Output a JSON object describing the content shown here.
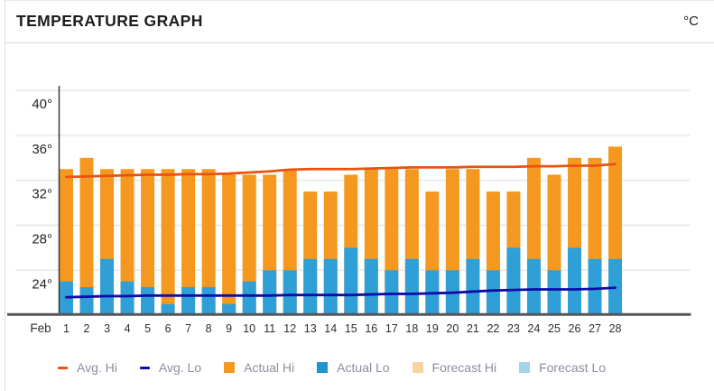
{
  "header": {
    "title": "TEMPERATURE GRAPH",
    "unit": "°C"
  },
  "legend": [
    {
      "label": "Avg. Hi",
      "shape": "line",
      "color": "#e9530e"
    },
    {
      "label": "Avg. Lo",
      "shape": "line",
      "color": "#0d0ca8"
    },
    {
      "label": "Actual Hi",
      "shape": "square",
      "color": "#f5981f"
    },
    {
      "label": "Actual Lo",
      "shape": "square",
      "color": "#2093d1"
    },
    {
      "label": "Forecast Hi",
      "shape": "square",
      "color": "#f9d3a0"
    },
    {
      "label": "Forecast Lo",
      "shape": "square",
      "color": "#a3d2ea"
    }
  ],
  "chart_data": {
    "type": "bar",
    "title": "TEMPERATURE GRAPH",
    "unit": "°C",
    "month_label": "Feb",
    "x": [
      1,
      2,
      3,
      4,
      5,
      6,
      7,
      8,
      9,
      10,
      11,
      12,
      13,
      14,
      15,
      16,
      17,
      18,
      19,
      20,
      21,
      22,
      23,
      24,
      25,
      26,
      27,
      28
    ],
    "y_axis": {
      "ticks": [
        40,
        36,
        32,
        28,
        24
      ],
      "tick_suffix": "°",
      "ylim": [
        20,
        40.5
      ],
      "grid": true
    },
    "series": [
      {
        "name": "Actual Hi",
        "type": "bar",
        "color": "#f5981f",
        "values": [
          33,
          34,
          33,
          33,
          33,
          33,
          33,
          33,
          32.5,
          32.5,
          32.5,
          33,
          31,
          31,
          32.5,
          33,
          33,
          33,
          31,
          33,
          33,
          31,
          31,
          34,
          32.5,
          34,
          34,
          35
        ]
      },
      {
        "name": "Actual Lo",
        "type": "bar",
        "color": "#2f9fd7",
        "values": [
          23,
          22.5,
          25,
          23,
          22.5,
          21,
          22.5,
          22.5,
          21,
          23,
          24,
          24,
          25,
          25,
          26,
          25,
          24,
          25,
          24,
          24,
          25,
          24,
          26,
          25,
          24,
          26,
          25,
          25
        ]
      },
      {
        "name": "Avg. Hi",
        "type": "line",
        "color": "#e9530e",
        "values": [
          32.3,
          32.35,
          32.4,
          32.45,
          32.5,
          32.5,
          32.55,
          32.55,
          32.6,
          32.7,
          32.8,
          32.95,
          33.0,
          33.0,
          33.0,
          33.05,
          33.1,
          33.15,
          33.15,
          33.15,
          33.2,
          33.2,
          33.2,
          33.25,
          33.25,
          33.3,
          33.3,
          33.45
        ]
      },
      {
        "name": "Avg. Lo",
        "type": "line",
        "color": "#0d0ca8",
        "values": [
          21.6,
          21.65,
          21.7,
          21.7,
          21.75,
          21.75,
          21.75,
          21.75,
          21.75,
          21.75,
          21.75,
          21.8,
          21.8,
          21.8,
          21.8,
          21.85,
          21.9,
          21.9,
          21.95,
          22.0,
          22.1,
          22.2,
          22.25,
          22.3,
          22.3,
          22.3,
          22.35,
          22.45
        ]
      },
      {
        "name": "Forecast Hi",
        "type": "bar",
        "color": "#f9d3a0",
        "values": []
      },
      {
        "name": "Forecast Lo",
        "type": "bar",
        "color": "#a3d2ea",
        "values": []
      }
    ],
    "legend_position": "bottom"
  }
}
